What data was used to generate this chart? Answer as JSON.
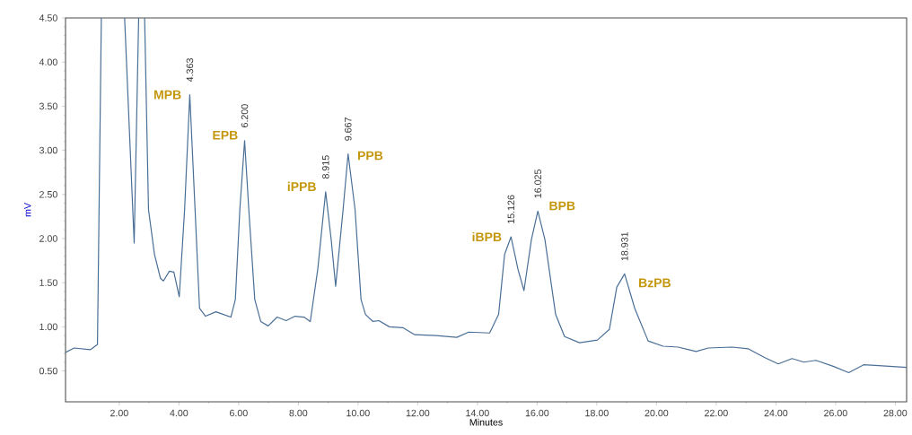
{
  "chart_data": {
    "type": "line",
    "xlabel": "Minutes",
    "ylabel": "mV",
    "xlim": [
      0.2,
      28.38
    ],
    "ylim": [
      0.15,
      4.5
    ],
    "xticks": [
      {
        "value": 2,
        "label": "2.00"
      },
      {
        "value": 4,
        "label": "4.00"
      },
      {
        "value": 6,
        "label": "6.00"
      },
      {
        "value": 8,
        "label": "8.00"
      },
      {
        "value": 10,
        "label": "10.00"
      },
      {
        "value": 12,
        "label": "12.00"
      },
      {
        "value": 14,
        "label": "14.00"
      },
      {
        "value": 16,
        "label": "16.00"
      },
      {
        "value": 18,
        "label": "18.00"
      },
      {
        "value": 20,
        "label": "20.00"
      },
      {
        "value": 22,
        "label": "22.00"
      },
      {
        "value": 24,
        "label": "24.00"
      },
      {
        "value": 26,
        "label": "26.00"
      },
      {
        "value": 28,
        "label": "28.00"
      }
    ],
    "yticks": [
      {
        "value": 0.5,
        "label": "0.50"
      },
      {
        "value": 1,
        "label": "1.00"
      },
      {
        "value": 1.5,
        "label": "1.50"
      },
      {
        "value": 2,
        "label": "2.00"
      },
      {
        "value": 2.5,
        "label": "2.50"
      },
      {
        "value": 3,
        "label": "3.00"
      },
      {
        "value": 3.5,
        "label": "3.50"
      },
      {
        "value": 4,
        "label": "4.00"
      },
      {
        "value": 4.5,
        "label": "4.50"
      }
    ],
    "grid": false,
    "legend": false,
    "marker": "none",
    "line_style": "solid",
    "series": [
      {
        "color": "#4a6f96",
        "x": [
          0.2,
          0.49,
          1.03,
          1.27,
          1.4,
          1.8,
          2.18,
          2.5,
          2.65,
          2.75,
          2.85,
          2.98,
          3.18,
          3.38,
          3.48,
          3.68,
          3.83,
          4.01,
          4.19,
          4.363,
          4.54,
          4.69,
          4.89,
          5.24,
          5.74,
          5.89,
          6.04,
          6.2,
          6.34,
          6.54,
          6.74,
          6.99,
          7.29,
          7.59,
          7.89,
          8.19,
          8.4,
          8.65,
          8.915,
          9.1,
          9.25,
          9.5,
          9.667,
          9.9,
          10.1,
          10.25,
          10.5,
          10.7,
          11.05,
          11.5,
          11.9,
          12.61,
          13.31,
          13.71,
          14.41,
          14.71,
          14.91,
          15.126,
          15.36,
          15.56,
          15.81,
          16.025,
          16.26,
          16.62,
          16.92,
          17.42,
          18.02,
          18.42,
          18.67,
          18.931,
          19.27,
          19.72,
          20.22,
          20.73,
          21.33,
          21.73,
          22.53,
          23.08,
          23.63,
          24.08,
          24.54,
          24.94,
          25.34,
          25.94,
          26.44,
          26.94,
          27.44,
          28.38
        ],
        "values": [
          0.71,
          0.76,
          0.74,
          0.8,
          4.5,
          null,
          4.5,
          1.95,
          4.5,
          null,
          4.5,
          2.33,
          1.82,
          1.55,
          1.52,
          1.63,
          1.62,
          1.34,
          2.33,
          3.63,
          2.33,
          1.21,
          1.12,
          1.17,
          1.11,
          1.31,
          2.33,
          3.11,
          2.33,
          1.31,
          1.06,
          1.01,
          1.11,
          1.07,
          1.12,
          1.11,
          1.06,
          1.65,
          2.53,
          1.99,
          1.46,
          2.33,
          2.96,
          2.33,
          1.31,
          1.14,
          1.06,
          1.07,
          1.0,
          0.99,
          0.91,
          0.9,
          0.88,
          0.94,
          0.93,
          1.14,
          1.82,
          2.02,
          1.65,
          1.41,
          1.99,
          2.31,
          1.99,
          1.14,
          0.89,
          0.82,
          0.85,
          0.97,
          1.45,
          1.6,
          1.21,
          0.84,
          0.78,
          0.77,
          0.72,
          0.76,
          0.77,
          0.75,
          0.65,
          0.58,
          0.64,
          0.6,
          0.62,
          0.55,
          0.48,
          0.57,
          0.56,
          0.54
        ]
      }
    ],
    "annotations": [
      {
        "text": "4.363",
        "x": 4.363,
        "y": 3.63
      },
      {
        "text": "MPB",
        "x": 4.363,
        "y": 3.63
      },
      {
        "text": "6.200",
        "x": 6.2,
        "y": 3.11
      },
      {
        "text": "EPB",
        "x": 6.2,
        "y": 3.11
      },
      {
        "text": "8.915",
        "x": 8.915,
        "y": 2.53
      },
      {
        "text": "iPPB",
        "x": 8.915,
        "y": 2.53
      },
      {
        "text": "9.667",
        "x": 9.667,
        "y": 2.96
      },
      {
        "text": "PPB",
        "x": 9.667,
        "y": 2.96
      },
      {
        "text": "15.126",
        "x": 15.126,
        "y": 2.02
      },
      {
        "text": "iBPB",
        "x": 15.126,
        "y": 2.02
      },
      {
        "text": "16.025",
        "x": 16.025,
        "y": 2.31
      },
      {
        "text": "BPB",
        "x": 16.025,
        "y": 2.31
      },
      {
        "text": "18.931",
        "x": 18.931,
        "y": 1.6
      },
      {
        "text": "BzPB",
        "x": 18.931,
        "y": 1.6
      }
    ]
  }
}
